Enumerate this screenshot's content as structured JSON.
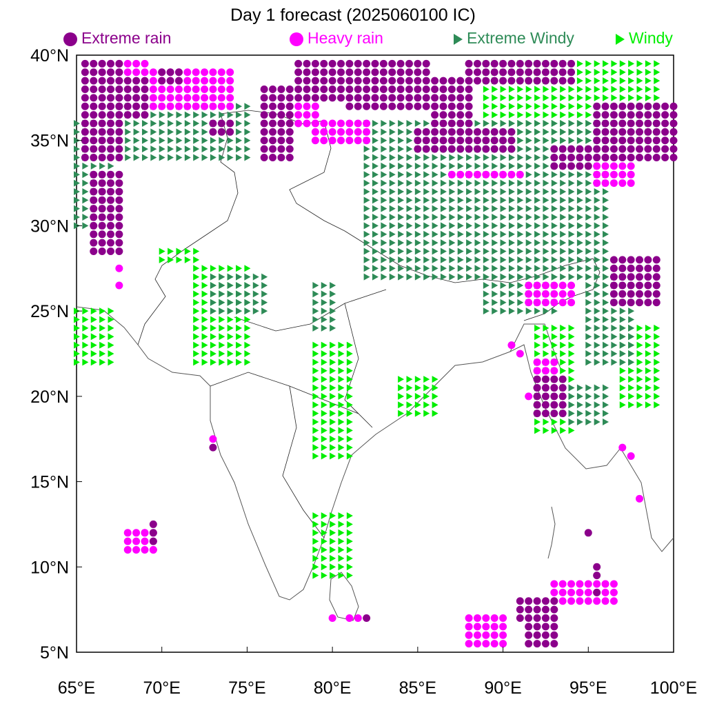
{
  "title": "Day 1 forecast (2025060100 IC)",
  "legend": [
    {
      "label": "Extreme rain",
      "symbol": "dot",
      "color": "#8b008b"
    },
    {
      "label": "Heavy rain",
      "symbol": "dot",
      "color": "#ff00ff"
    },
    {
      "label": "Extreme Windy",
      "symbol": "triangle",
      "color": "#2e8b57"
    },
    {
      "label": "Windy",
      "symbol": "triangle",
      "color": "#00ee00"
    }
  ],
  "axes": {
    "lon_range": [
      65,
      100
    ],
    "lat_range": [
      5,
      40
    ],
    "x_ticks": [
      "65°E",
      "70°E",
      "75°E",
      "80°E",
      "85°E",
      "90°E",
      "95°E",
      "100°E"
    ],
    "y_ticks": [
      "5°N",
      "10°N",
      "15°N",
      "20°N",
      "25°N",
      "30°N",
      "35°N",
      "40°N"
    ]
  },
  "colors": {
    "extreme_rain": "#8b008b",
    "heavy_rain": "#ff00ff",
    "extreme_windy": "#2e8b57",
    "windy": "#00ee00",
    "coast": "#555555",
    "border": "#222222"
  },
  "map_data": {
    "extreme_rain": [
      [
        [
          65.5,
          67.5
        ],
        [
          39.5,
          34
        ]
      ],
      [
        [
          67,
          69
        ],
        [
          38.5,
          36.5
        ]
      ],
      [
        [
          70,
          71
        ],
        [
          39,
          38.5
        ]
      ],
      [
        [
          73,
          74
        ],
        [
          36,
          35.5
        ]
      ],
      [
        [
          76,
          77.5
        ],
        [
          38,
          34
        ]
      ],
      [
        [
          78,
          80.5
        ],
        [
          39.5,
          37.5
        ]
      ],
      [
        [
          81,
          85.5
        ],
        [
          39.5,
          37
        ]
      ],
      [
        [
          86,
          88
        ],
        [
          38.5,
          36
        ]
      ],
      [
        [
          88,
          94
        ],
        [
          39.5,
          38.5
        ]
      ],
      [
        [
          85,
          90.5
        ],
        [
          35.5,
          34.5
        ]
      ],
      [
        [
          93,
          95
        ],
        [
          34.5,
          33.5
        ]
      ],
      [
        [
          95.5,
          100
        ],
        [
          37,
          34
        ]
      ],
      [
        [
          96.5,
          99
        ],
        [
          28,
          25.5
        ]
      ],
      [
        [
          66,
          67.5
        ],
        [
          33,
          28.5
        ]
      ],
      [
        [
          92,
          93.5
        ],
        [
          21,
          19
        ]
      ],
      [
        [
          91,
          93
        ],
        [
          8,
          7
        ]
      ],
      [
        [
          91.5,
          93
        ],
        [
          6.5,
          5.5
        ]
      ]
    ],
    "heavy_rain": [
      [
        [
          66.5,
          69
        ],
        [
          39.5,
          39
        ]
      ],
      [
        [
          69.5,
          74
        ],
        [
          39,
          37
        ]
      ],
      [
        [
          77,
          79
        ],
        [
          37,
          36
        ]
      ],
      [
        [
          79,
          82
        ],
        [
          36,
          35
        ]
      ],
      [
        [
          87,
          91
        ],
        [
          33,
          33
        ]
      ],
      [
        [
          91.5,
          94
        ],
        [
          26.5,
          25.5
        ]
      ],
      [
        [
          95.5,
          97.5
        ],
        [
          34,
          32.5
        ]
      ],
      [
        [
          92,
          93
        ],
        [
          22,
          20.5
        ]
      ],
      [
        [
          88,
          90
        ],
        [
          7,
          5.5
        ]
      ],
      [
        [
          93,
          96.5
        ],
        [
          9,
          8
        ]
      ],
      [
        [
          68,
          69.5
        ],
        [
          12,
          11
        ]
      ]
    ],
    "extreme_windy": [
      [
        [
          65,
          67
        ],
        [
          36,
          30
        ]
      ],
      [
        [
          67,
          75
        ],
        [
          37,
          34
        ]
      ],
      [
        [
          82,
          96
        ],
        [
          36,
          27
        ]
      ],
      [
        [
          73,
          76
        ],
        [
          27,
          25
        ]
      ],
      [
        [
          79,
          80
        ],
        [
          26.5,
          24
        ]
      ],
      [
        [
          89,
          93
        ],
        [
          27,
          25
        ]
      ],
      [
        [
          95,
          97.5
        ],
        [
          27,
          22
        ]
      ],
      [
        [
          94,
          96
        ],
        [
          20.5,
          18.5
        ]
      ]
    ],
    "windy": [
      [
        [
          65,
          67
        ],
        [
          25,
          22
        ]
      ],
      [
        [
          72,
          75
        ],
        [
          27.5,
          22
        ]
      ],
      [
        [
          79,
          81
        ],
        [
          23,
          16.5
        ]
      ],
      [
        [
          84,
          86
        ],
        [
          21,
          19
        ]
      ],
      [
        [
          89,
          99
        ],
        [
          39.5,
          35
        ]
      ],
      [
        [
          97,
          99
        ],
        [
          24,
          19.5
        ]
      ],
      [
        [
          92,
          94
        ],
        [
          24,
          18
        ]
      ],
      [
        [
          70,
          72
        ],
        [
          28.5,
          28
        ]
      ],
      [
        [
          79,
          81
        ],
        [
          13,
          9.5
        ]
      ]
    ],
    "points_extreme_rain": [
      [
        73,
        17
      ],
      [
        69.5,
        12.5
      ],
      [
        69.5,
        12
      ],
      [
        69.5,
        11.5
      ],
      [
        95,
        12
      ],
      [
        95.5,
        10
      ],
      [
        95.5,
        9.5
      ],
      [
        82,
        7
      ],
      [
        92.5,
        7
      ],
      [
        95.5,
        8.5
      ]
    ],
    "points_heavy_rain": [
      [
        73,
        17.5
      ],
      [
        69,
        12
      ],
      [
        69.5,
        11
      ],
      [
        97,
        17
      ],
      [
        97.5,
        16.5
      ],
      [
        98,
        14
      ],
      [
        80,
        7
      ],
      [
        81,
        7
      ],
      [
        81.5,
        7
      ],
      [
        96,
        9
      ],
      [
        67.5,
        27.5
      ],
      [
        67.5,
        26.5
      ],
      [
        91.5,
        20
      ],
      [
        90.5,
        23
      ],
      [
        91,
        22.5
      ]
    ]
  }
}
